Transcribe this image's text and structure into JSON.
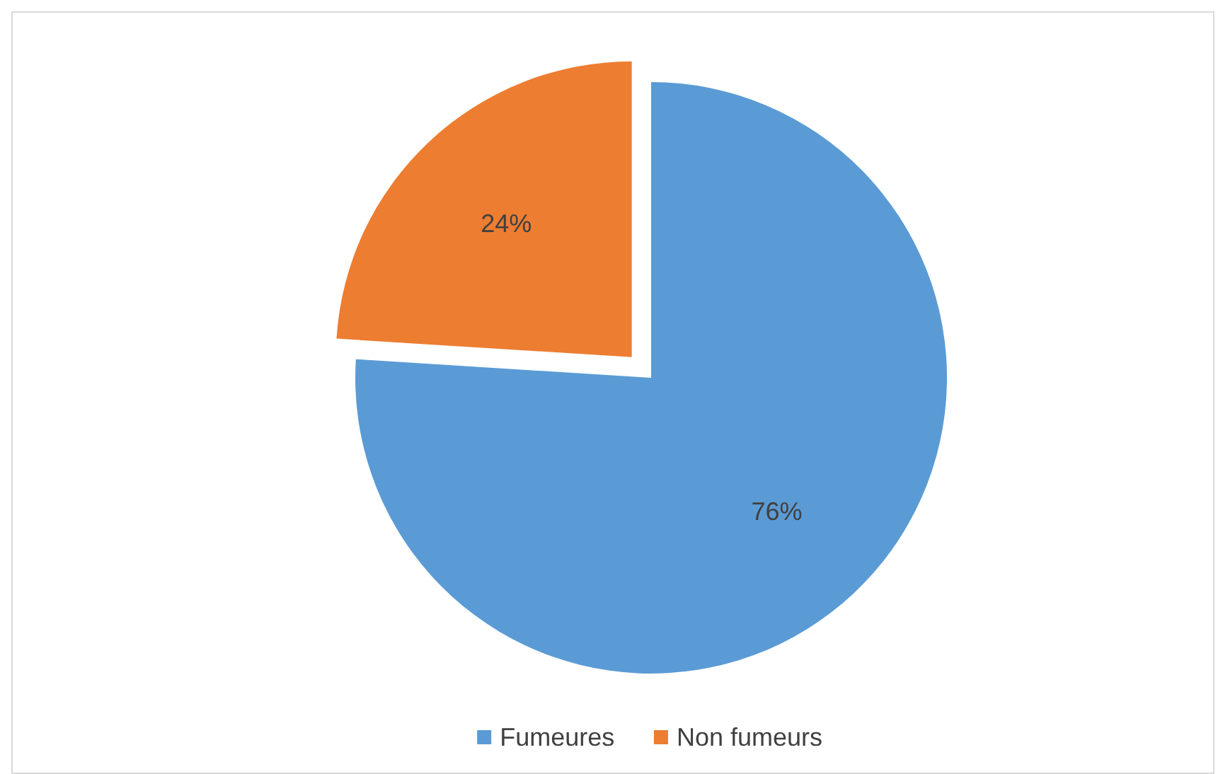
{
  "chart_data": {
    "type": "pie",
    "categories": [
      "Fumeures",
      "Non fumeurs"
    ],
    "values": [
      76,
      24
    ],
    "value_labels": [
      "76%",
      "24%"
    ],
    "colors": [
      "#5b9bd5",
      "#ed7d31"
    ],
    "legend": "bottom"
  }
}
